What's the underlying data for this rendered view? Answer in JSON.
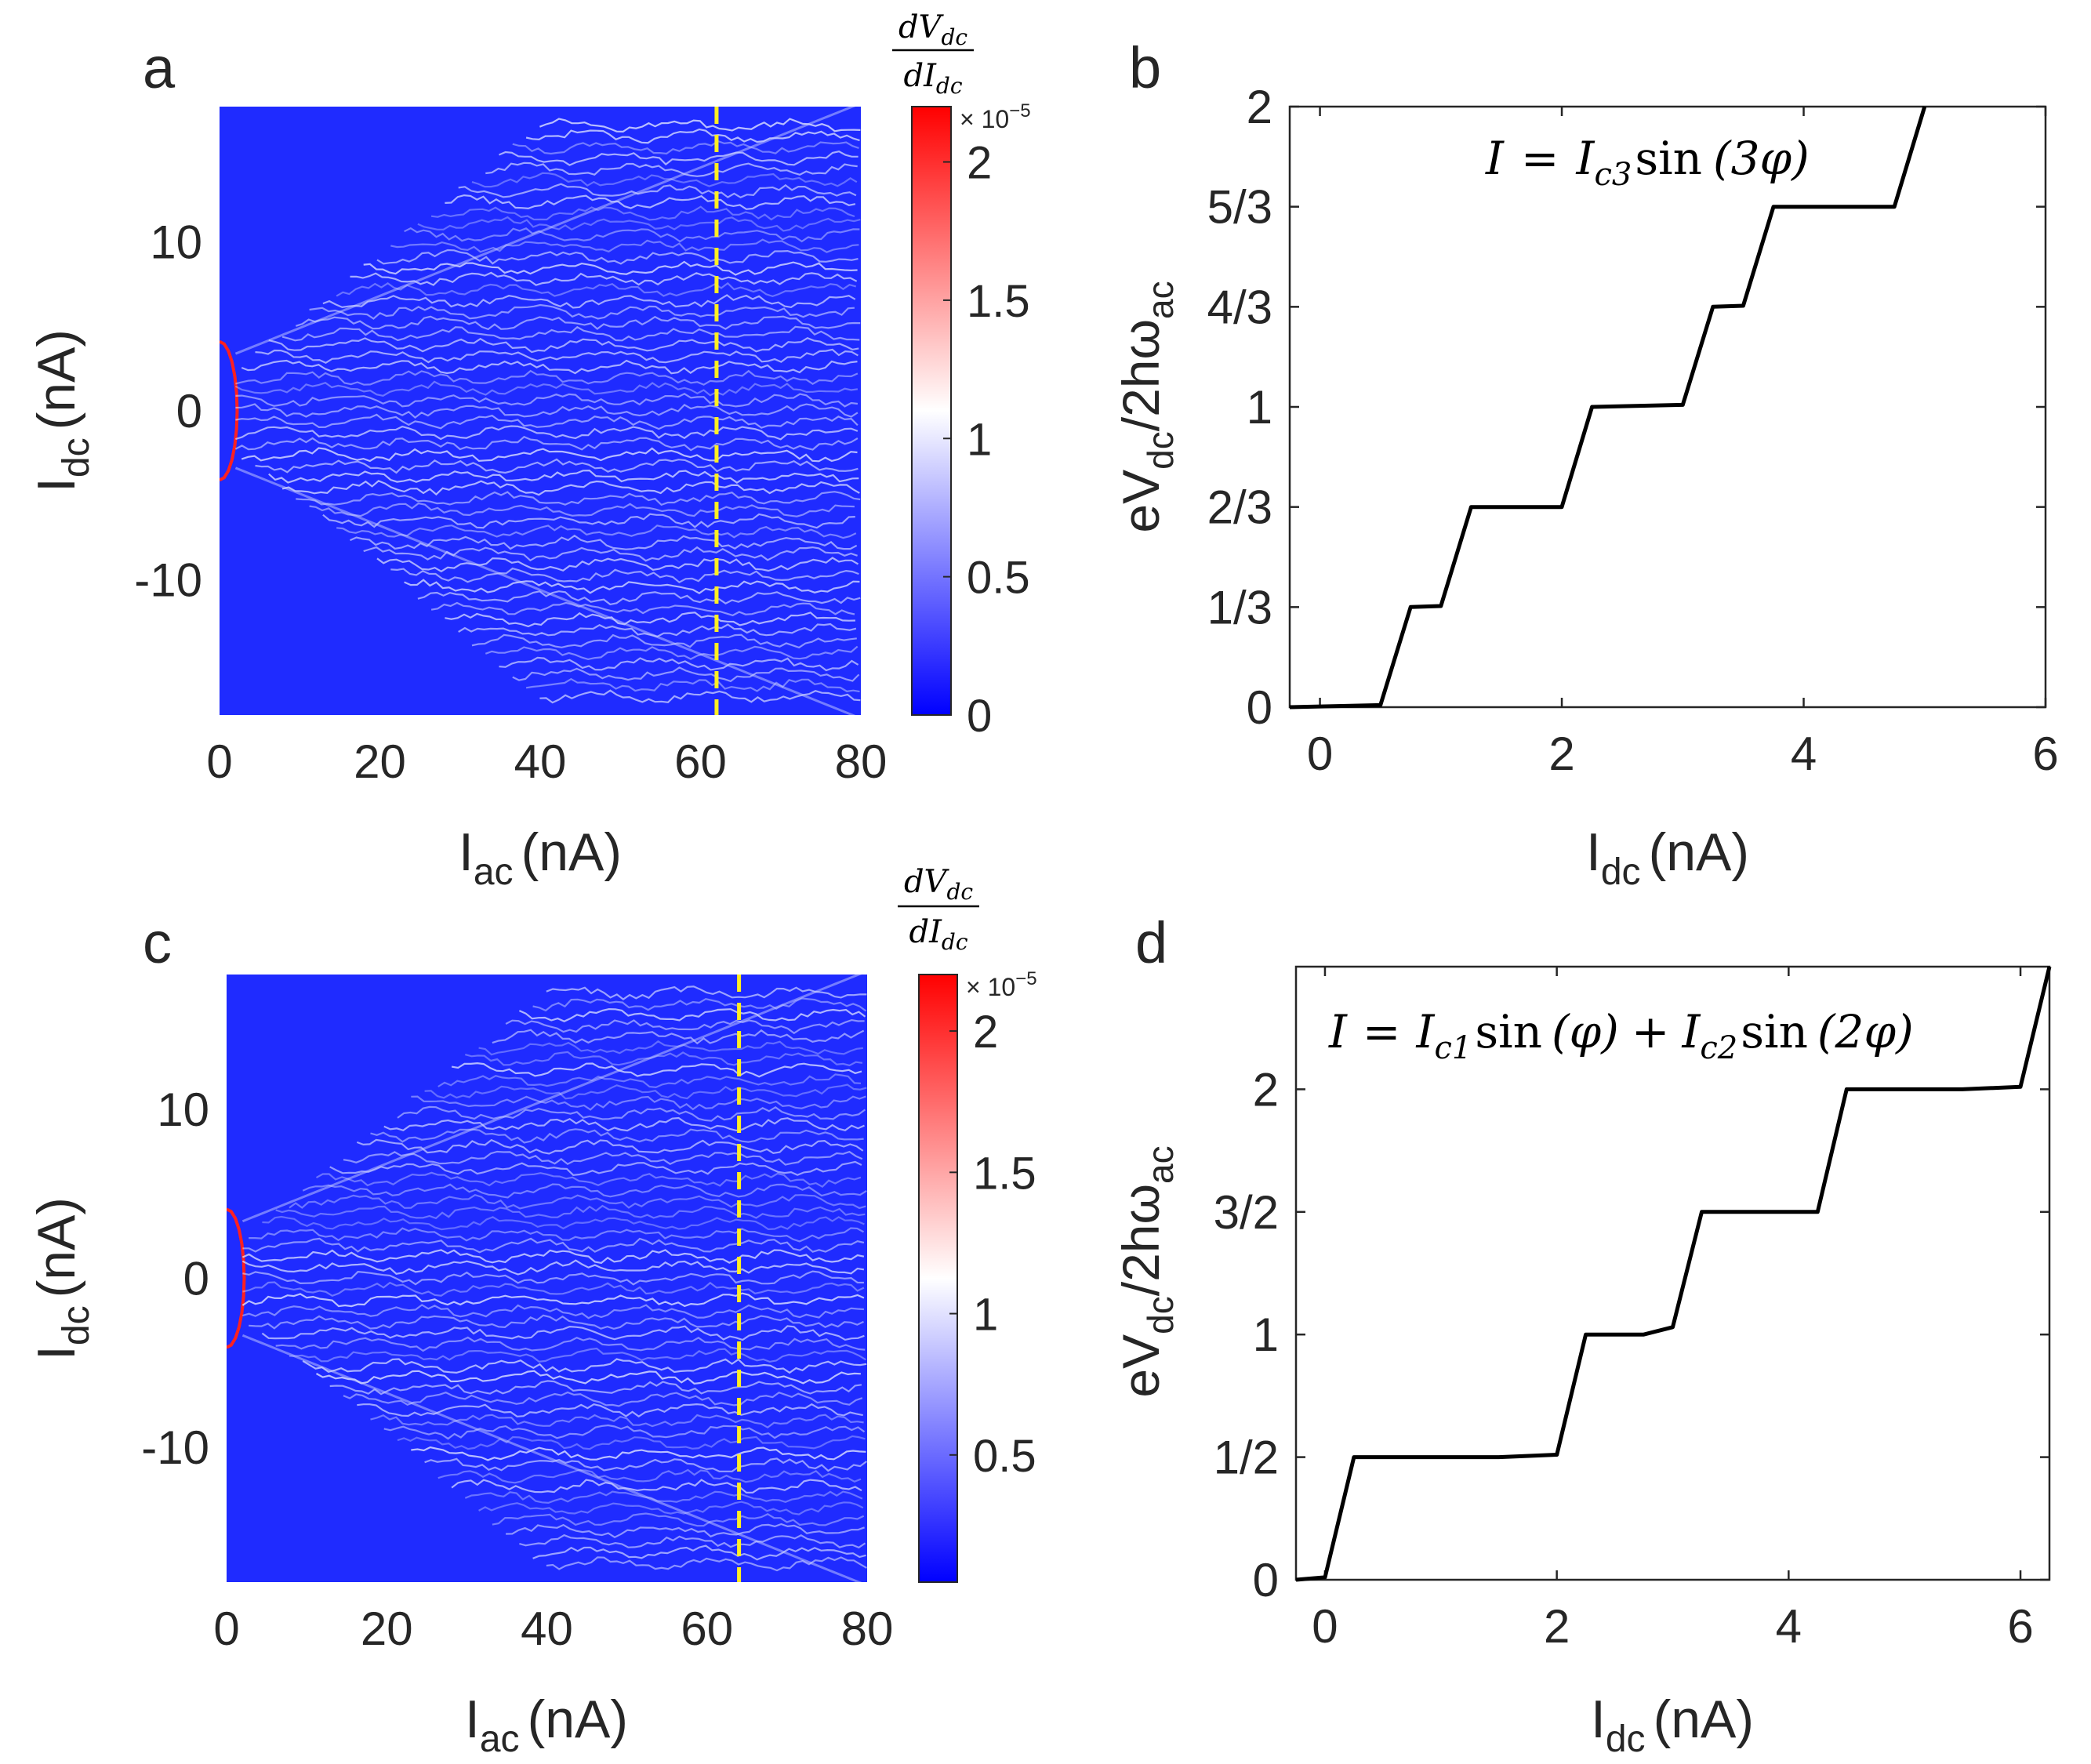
{
  "colors": {
    "background": "#1f2bff",
    "colormap_low": "#0000ff",
    "colormap_mid": "#ffffff",
    "colormap_high": "#ff0000",
    "dashed_line": "#ffee22",
    "axis": "#262626",
    "curve": "#000000"
  },
  "chart_data": [
    {
      "panel": "a",
      "type": "heatmap",
      "xlabel": "I",
      "xlabel_sub": "ac",
      "xlabel_unit": "(nA)",
      "ylabel": "I",
      "ylabel_sub": "dc",
      "ylabel_unit": "(nA)",
      "xlim": [
        0,
        80
      ],
      "ylim": [
        -18,
        18
      ],
      "xticks": [
        0,
        20,
        40,
        60,
        80
      ],
      "xtick_labels": [
        "0",
        "20",
        "40",
        "60",
        "80"
      ],
      "yticks": [
        10,
        0,
        -10
      ],
      "ytick_labels": [
        "10",
        "0",
        "-10"
      ],
      "dashed_line_x": 62,
      "colorbar": {
        "title_num": "dV",
        "title_num_sub": "dc",
        "title_den": "dI",
        "title_den_sub": "dc",
        "multiplier": "× 10",
        "exponent": "−5",
        "range": [
          0,
          2.2
        ],
        "ticks": [
          2,
          1.5,
          1,
          0.5,
          0
        ],
        "tick_labels": [
          "2",
          "1.5",
          "1",
          "0.5",
          "0"
        ]
      }
    },
    {
      "panel": "b",
      "type": "line",
      "xlabel": "I",
      "xlabel_sub": "dc",
      "xlabel_unit": "(nA)",
      "ylabel_main": "eV",
      "ylabel_sub": "dc",
      "ylabel_rest": "/2hω",
      "ylabel_sub2": "ac",
      "xlim": [
        -0.25,
        6
      ],
      "ylim": [
        0,
        2
      ],
      "xticks": [
        0,
        2,
        4,
        6
      ],
      "xtick_labels": [
        "0",
        "2",
        "4",
        "6"
      ],
      "yticks": [
        0,
        0.3333,
        0.6667,
        1,
        1.3333,
        1.6667,
        2
      ],
      "ytick_labels": [
        "0",
        "1/3",
        "2/3",
        "1",
        "4/3",
        "5/3",
        "2"
      ],
      "annotation": "I = I_c3 sin (3φ)",
      "annotation_parts": {
        "lhs": "I",
        "eq": "=",
        "i": "I",
        "sub": "c3",
        "fn": "sin",
        "arg": "(3φ)"
      },
      "x": [
        -0.25,
        0.5,
        0.75,
        1.0,
        1.25,
        2.0,
        2.25,
        3.0,
        3.25,
        3.5,
        3.75,
        4.75,
        5.0
      ],
      "y": [
        0,
        0.0067,
        0.3333,
        0.3367,
        0.6667,
        0.6667,
        1.0,
        1.0067,
        1.3333,
        1.3367,
        1.6667,
        1.6667,
        2.0
      ]
    },
    {
      "panel": "c",
      "type": "heatmap",
      "xlabel": "I",
      "xlabel_sub": "ac",
      "xlabel_unit": "(nA)",
      "ylabel": "I",
      "ylabel_sub": "dc",
      "ylabel_unit": "(nA)",
      "xlim": [
        0,
        80
      ],
      "ylim": [
        -18,
        18
      ],
      "xticks": [
        0,
        20,
        40,
        60,
        80
      ],
      "xtick_labels": [
        "0",
        "20",
        "40",
        "60",
        "80"
      ],
      "yticks": [
        10,
        0,
        -10
      ],
      "ytick_labels": [
        "10",
        "0",
        "-10"
      ],
      "dashed_line_x": 64,
      "colorbar": {
        "title_num": "dV",
        "title_num_sub": "dc",
        "title_den": "dI",
        "title_den_sub": "dc",
        "multiplier": "× 10",
        "exponent": "−5",
        "range": [
          0.05,
          2.2
        ],
        "ticks": [
          2,
          1.5,
          1,
          0.5
        ],
        "tick_labels": [
          "2",
          "1.5",
          "1",
          "0.5"
        ]
      }
    },
    {
      "panel": "d",
      "type": "line",
      "xlabel": "I",
      "xlabel_sub": "dc",
      "xlabel_unit": "(nA)",
      "ylabel_main": "eV",
      "ylabel_sub": "dc",
      "ylabel_rest": "/2hω",
      "ylabel_sub2": "ac",
      "xlim": [
        -0.25,
        6.25
      ],
      "ylim": [
        0,
        2.5
      ],
      "xticks": [
        0,
        2,
        4,
        6
      ],
      "xtick_labels": [
        "0",
        "2",
        "4",
        "6"
      ],
      "yticks": [
        0,
        0.5,
        1,
        1.5,
        2
      ],
      "ytick_labels": [
        "0",
        "1/2",
        "1",
        "3/2",
        "2"
      ],
      "annotation": "I = I_c1 sin (φ) + I_c2 sin (2φ)",
      "annotation_parts": {
        "lhs": "I",
        "eq": "=",
        "i1": "I",
        "sub1": "c1",
        "fn1": "sin",
        "arg1": "(φ)",
        "plus": "+",
        "i2": "I",
        "sub2": "c2",
        "fn2": "sin",
        "arg2": "(2φ)"
      },
      "x": [
        -0.25,
        0.0,
        0.25,
        1.5,
        2.0,
        2.25,
        2.75,
        3.0,
        3.25,
        4.25,
        4.5,
        5.5,
        6.0,
        6.25
      ],
      "y": [
        0,
        0.01,
        0.5,
        0.5,
        0.51,
        1.0,
        1.0,
        1.03,
        1.5,
        1.5,
        2.0,
        2.0,
        2.01,
        2.5
      ]
    }
  ],
  "panel_labels": [
    "a",
    "b",
    "c",
    "d"
  ]
}
